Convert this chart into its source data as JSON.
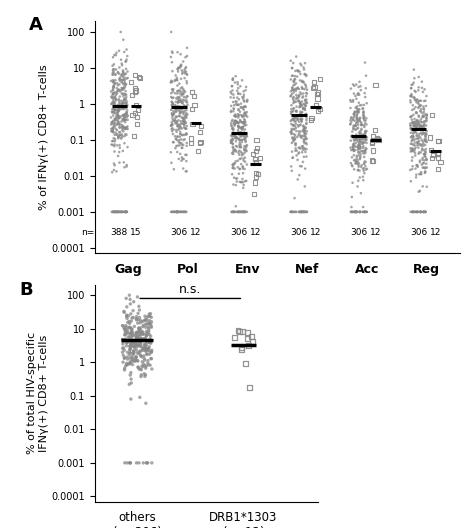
{
  "panel_A": {
    "ylabel": "% of IFNγ(+) CD8+ T-cells",
    "groups": [
      "Gag",
      "Pol",
      "Env",
      "Nef",
      "Acc",
      "Reg"
    ],
    "n_others": [
      388,
      306,
      306,
      306,
      306,
      306
    ],
    "n_drb": [
      15,
      12,
      12,
      12,
      12,
      12
    ],
    "medians_others": [
      0.9,
      0.8,
      0.16,
      0.5,
      0.13,
      0.2
    ],
    "medians_drb": [
      0.9,
      0.3,
      0.022,
      0.8,
      0.1,
      0.048
    ],
    "ylim_low": 7e-05,
    "ylim_high": 200,
    "yticks": [
      0.0001,
      0.001,
      0.01,
      0.1,
      1,
      10,
      100
    ],
    "ytick_labels": [
      "0.0001",
      "0.001",
      "0.01",
      "0.1",
      "1",
      "10",
      "100"
    ]
  },
  "panel_B": {
    "ylabel": "% of total HIV-specific\nIFNγ(+) CD8+ T-cells",
    "median_others": 4.5,
    "median_drb": 3.2,
    "ylim_low": 7e-05,
    "ylim_high": 200,
    "yticks": [
      0.0001,
      0.001,
      0.01,
      0.1,
      1,
      10,
      100
    ],
    "ytick_labels": [
      "0.0001",
      "0.001",
      "0.01",
      "0.1",
      "1",
      "10",
      "100"
    ]
  },
  "dot_color": "#888888",
  "dot_edge_color": "#888888",
  "median_color": "#000000",
  "floor_value": 0.001,
  "floor_value_b": 0.001
}
